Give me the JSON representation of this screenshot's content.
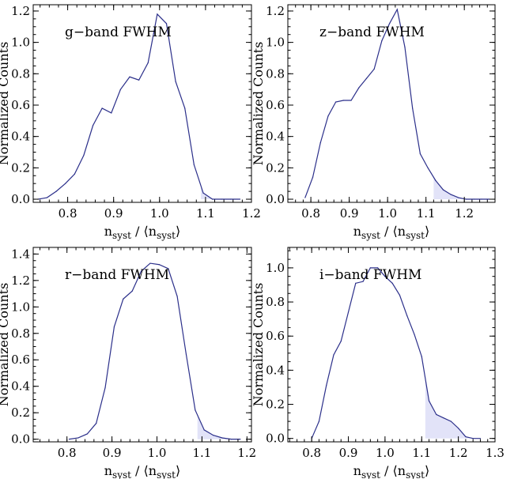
{
  "colors": {
    "line": "#2b2f8a",
    "shade": "#e2e3f8",
    "axis": "#000000"
  },
  "chart_data": [
    {
      "type": "area",
      "title": "g−band FWHM",
      "xlabel_main": "n",
      "xlabel_sub": "syst",
      "xlabel_mid": " / ⟨n",
      "xlabel_end": "⟩",
      "ylabel": "Normalized Counts",
      "xlim": [
        0.725,
        1.2
      ],
      "ylim": [
        -0.02,
        1.24
      ],
      "xticks": [
        0.8,
        0.9,
        1.0,
        1.1,
        1.2
      ],
      "xtick_labels": [
        "0.8",
        "0.9",
        "1.0",
        "1.1",
        "1.2"
      ],
      "yticks": [
        0.0,
        0.2,
        0.4,
        0.6,
        0.8,
        1.0,
        1.2
      ],
      "ytick_labels": [
        "0.0",
        "0.2",
        "0.4",
        "0.6",
        "0.8",
        "1.0",
        "1.2"
      ],
      "shade_from_x": 1.09,
      "x": [
        0.735,
        0.755,
        0.775,
        0.795,
        0.815,
        0.835,
        0.855,
        0.875,
        0.895,
        0.915,
        0.935,
        0.955,
        0.975,
        0.995,
        1.015,
        1.035,
        1.055,
        1.075,
        1.095,
        1.115,
        1.135,
        1.155,
        1.175
      ],
      "y": [
        0.0,
        0.01,
        0.05,
        0.1,
        0.16,
        0.28,
        0.47,
        0.58,
        0.55,
        0.7,
        0.78,
        0.76,
        0.87,
        1.18,
        1.12,
        0.75,
        0.58,
        0.22,
        0.04,
        0.0,
        0.0,
        0.0,
        0.0
      ]
    },
    {
      "type": "area",
      "title": "z−band FWHM",
      "xlabel_main": "n",
      "xlabel_sub": "syst",
      "xlabel_mid": " / ⟨n",
      "xlabel_end": "⟩",
      "ylabel": "Normalized Counts",
      "xlim": [
        0.74,
        1.28
      ],
      "ylim": [
        -0.02,
        1.24
      ],
      "xticks": [
        0.8,
        0.9,
        1.0,
        1.1,
        1.2
      ],
      "xtick_labels": [
        "0.8",
        "0.9",
        "1.0",
        "1.1",
        "1.2"
      ],
      "yticks": [
        0.0,
        0.2,
        0.4,
        0.6,
        0.8,
        1.0,
        1.2
      ],
      "ytick_labels": [
        "0.0",
        "0.2",
        "0.4",
        "0.6",
        "0.8",
        "1.0",
        "1.2"
      ],
      "shade_from_x": 1.12,
      "x": [
        0.785,
        0.805,
        0.825,
        0.845,
        0.865,
        0.885,
        0.905,
        0.925,
        0.945,
        0.965,
        0.985,
        1.005,
        1.025,
        1.045,
        1.065,
        1.085,
        1.105,
        1.125,
        1.145,
        1.165,
        1.185,
        1.205,
        1.225,
        1.245,
        1.265
      ],
      "y": [
        0.01,
        0.14,
        0.36,
        0.53,
        0.62,
        0.63,
        0.63,
        0.71,
        0.77,
        0.83,
        1.01,
        1.12,
        1.21,
        0.97,
        0.58,
        0.29,
        0.2,
        0.12,
        0.06,
        0.03,
        0.01,
        0.0,
        0.0,
        0.0,
        0.0
      ]
    },
    {
      "type": "area",
      "title": "r−band FWHM",
      "xlabel_main": "n",
      "xlabel_sub": "syst",
      "xlabel_mid": " / ⟨n",
      "xlabel_end": "⟩",
      "ylabel": "Normalized Counts",
      "xlim": [
        0.725,
        1.21
      ],
      "ylim": [
        -0.02,
        1.45
      ],
      "xticks": [
        0.8,
        0.9,
        1.0,
        1.1,
        1.2
      ],
      "xtick_labels": [
        "0.8",
        "0.9",
        "1.0",
        "1.1",
        "1.2"
      ],
      "yticks": [
        0.0,
        0.2,
        0.4,
        0.6,
        0.8,
        1.0,
        1.2,
        1.4
      ],
      "ytick_labels": [
        "0.0",
        "0.2",
        "0.4",
        "0.6",
        "0.8",
        "1.0",
        "1.2",
        "1.4"
      ],
      "shade_from_x": 1.09,
      "x": [
        0.805,
        0.825,
        0.845,
        0.865,
        0.885,
        0.905,
        0.925,
        0.945,
        0.965,
        0.985,
        1.005,
        1.025,
        1.045,
        1.065,
        1.085,
        1.105,
        1.125,
        1.145,
        1.165,
        1.185
      ],
      "y": [
        0.0,
        0.01,
        0.04,
        0.12,
        0.39,
        0.85,
        1.06,
        1.12,
        1.27,
        1.33,
        1.32,
        1.29,
        1.08,
        0.64,
        0.22,
        0.07,
        0.03,
        0.01,
        0.0,
        0.0
      ]
    },
    {
      "type": "area",
      "title": "i−band FWHM",
      "xlabel_main": "n",
      "xlabel_sub": "syst",
      "xlabel_mid": " / ⟨n",
      "xlabel_end": "⟩",
      "ylabel": "Normalized Counts",
      "xlim": [
        0.735,
        1.3
      ],
      "ylim": [
        -0.02,
        1.12
      ],
      "xticks": [
        0.8,
        0.9,
        1.0,
        1.1,
        1.2,
        1.3
      ],
      "xtick_labels": [
        "0.8",
        "0.9",
        "1.0",
        "1.1",
        "1.2",
        "1.3"
      ],
      "yticks": [
        0.0,
        0.2,
        0.4,
        0.6,
        0.8,
        1.0
      ],
      "ytick_labels": [
        "0.0",
        "0.2",
        "0.4",
        "0.6",
        "0.8",
        "1.0"
      ],
      "shade_from_x": 1.11,
      "x": [
        0.8,
        0.82,
        0.84,
        0.86,
        0.88,
        0.9,
        0.92,
        0.94,
        0.96,
        0.98,
        1.0,
        1.02,
        1.04,
        1.06,
        1.08,
        1.1,
        1.12,
        1.14,
        1.16,
        1.18,
        1.2,
        1.22,
        1.24,
        1.26
      ],
      "y": [
        0.0,
        0.1,
        0.31,
        0.49,
        0.57,
        0.74,
        0.91,
        0.92,
        1.0,
        1.0,
        0.95,
        0.91,
        0.84,
        0.72,
        0.61,
        0.48,
        0.22,
        0.14,
        0.12,
        0.1,
        0.06,
        0.01,
        0.0,
        0.0
      ]
    }
  ]
}
